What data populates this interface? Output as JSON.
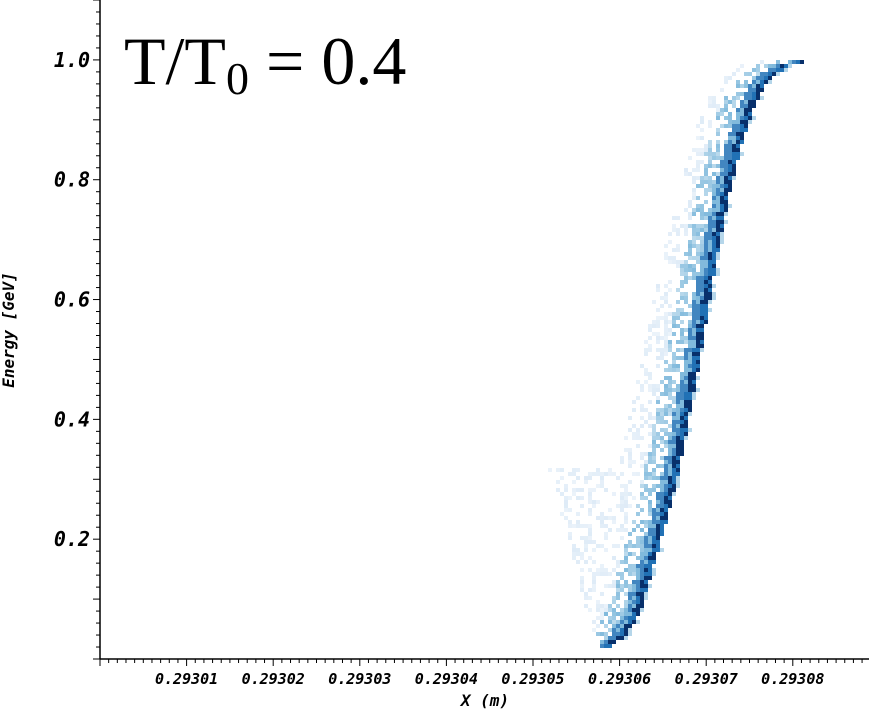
{
  "chart_data": {
    "type": "heatmap",
    "annotation": {
      "main": "T/T",
      "subscript": "0",
      "rest": " = 0.4"
    },
    "xlabel": "X (m)",
    "ylabel": "Energy [GeV]",
    "xlim": [
      0.293,
      0.2930888
    ],
    "ylim": [
      0.0,
      1.1
    ],
    "x_tick_labels": [
      {
        "value": 0.29301,
        "label": "0.29301"
      },
      {
        "value": 0.29302,
        "label": "0.29302"
      },
      {
        "value": 0.29303,
        "label": "0.29303"
      },
      {
        "value": 0.29304,
        "label": "0.29304"
      },
      {
        "value": 0.29305,
        "label": "0.29305"
      },
      {
        "value": 0.29306,
        "label": "0.29306"
      },
      {
        "value": 0.29307,
        "label": "0.29307"
      },
      {
        "value": 0.29308,
        "label": "0.29308"
      }
    ],
    "y_tick_labels": [
      {
        "value": 0.2,
        "label": "0.2"
      },
      {
        "value": 0.4,
        "label": "0.4"
      },
      {
        "value": 0.6,
        "label": "0.6"
      },
      {
        "value": 0.8,
        "label": "0.8"
      },
      {
        "value": 1.0,
        "label": "1.0"
      }
    ],
    "ridge": [
      [
        0.2930586,
        0.03
      ],
      [
        0.2930598,
        0.04
      ],
      [
        0.293061,
        0.06
      ],
      [
        0.2930617,
        0.08
      ],
      [
        0.2930625,
        0.12
      ],
      [
        0.2930633,
        0.16
      ],
      [
        0.2930641,
        0.2
      ],
      [
        0.293065,
        0.25
      ],
      [
        0.2930659,
        0.3
      ],
      [
        0.2930668,
        0.36
      ],
      [
        0.2930675,
        0.42
      ],
      [
        0.2930683,
        0.48
      ],
      [
        0.293069,
        0.54
      ],
      [
        0.2930697,
        0.6
      ],
      [
        0.2930704,
        0.66
      ],
      [
        0.2930712,
        0.72
      ],
      [
        0.293072,
        0.78
      ],
      [
        0.293073,
        0.84
      ],
      [
        0.293074,
        0.89
      ],
      [
        0.293075,
        0.93
      ],
      [
        0.2930762,
        0.96
      ],
      [
        0.2930775,
        0.98
      ],
      [
        0.293079,
        0.995
      ],
      [
        0.2930805,
        1.0
      ],
      [
        0.2930822,
        1.0
      ]
    ],
    "low_energy_edge": [
      [
        0.293052,
        0.32
      ],
      [
        0.293053,
        0.28
      ],
      [
        0.293054,
        0.22
      ],
      [
        0.293055,
        0.16
      ],
      [
        0.293056,
        0.1
      ],
      [
        0.293057,
        0.05
      ],
      [
        0.293058,
        0.025
      ]
    ],
    "colors": {
      "dense": "#08306b",
      "mid": "#2171b5",
      "light": "#6baed6",
      "faint": "#deebf7"
    }
  }
}
